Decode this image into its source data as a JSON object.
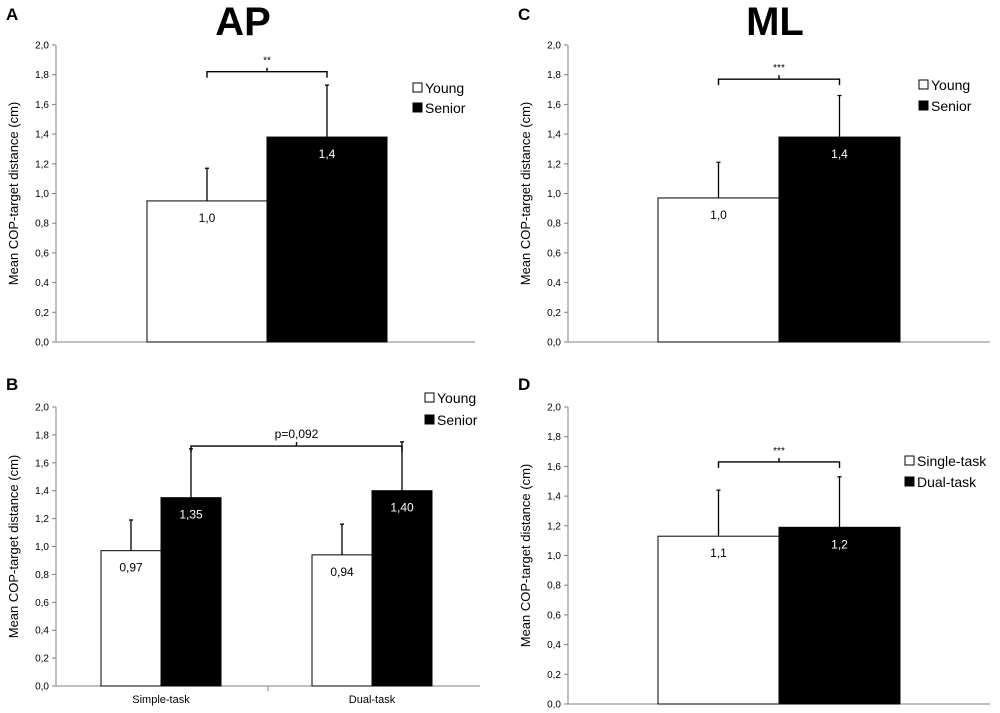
{
  "titles": {
    "ap": "AP",
    "ml": "ML"
  },
  "colors": {
    "young": "#ffffff",
    "senior": "#000000",
    "axis": "#808080",
    "text": "#000000"
  },
  "chart_data": [
    {
      "panel": "A",
      "type": "bar",
      "ylabel": "Mean COP-target distance (cm)",
      "ylim": [
        0,
        2.0
      ],
      "yticks": [
        "0,0",
        "0,2",
        "0,4",
        "0,6",
        "0,8",
        "1,0",
        "1,2",
        "1,4",
        "1,6",
        "1,8",
        "2,0"
      ],
      "categories": [
        ""
      ],
      "series": [
        {
          "name": "Young",
          "color": "#ffffff",
          "values": [
            0.95
          ],
          "errors": [
            0.22
          ],
          "labels": [
            "1,0"
          ]
        },
        {
          "name": "Senior",
          "color": "#000000",
          "values": [
            1.38
          ],
          "errors": [
            0.35
          ],
          "labels": [
            "1,4"
          ]
        }
      ],
      "significance": {
        "text": "**",
        "from": [
          0,
          0
        ],
        "to": [
          0,
          1
        ],
        "level": 1.82
      },
      "legend_position": "top-right"
    },
    {
      "panel": "B",
      "type": "bar",
      "ylabel": "Mean COP-target distance (cm)",
      "ylim": [
        0,
        2.0
      ],
      "yticks": [
        "0,0",
        "0,2",
        "0,4",
        "0,6",
        "0,8",
        "1,0",
        "1,2",
        "1,4",
        "1,6",
        "1,8",
        "2,0"
      ],
      "categories": [
        "Simple-task",
        "Dual-task"
      ],
      "series": [
        {
          "name": "Young",
          "color": "#ffffff",
          "values": [
            0.97,
            0.94
          ],
          "errors": [
            0.22,
            0.22
          ],
          "labels": [
            "0,97",
            "0,94"
          ]
        },
        {
          "name": "Senior",
          "color": "#000000",
          "values": [
            1.35,
            1.4
          ],
          "errors": [
            0.35,
            0.35
          ],
          "labels": [
            "1,35",
            "1,40"
          ]
        }
      ],
      "significance": {
        "text": "p=0,092",
        "from": [
          0,
          1
        ],
        "to": [
          1,
          1
        ],
        "level": 1.72
      },
      "legend_position": "top-right"
    },
    {
      "panel": "C",
      "type": "bar",
      "ylabel": "Mean COP-target distance (cm)",
      "ylim": [
        0,
        2.0
      ],
      "yticks": [
        "0,0",
        "0,2",
        "0,4",
        "0,6",
        "0,8",
        "1,0",
        "1,2",
        "1,4",
        "1,6",
        "1,8",
        "2,0"
      ],
      "categories": [
        ""
      ],
      "series": [
        {
          "name": "Young",
          "color": "#ffffff",
          "values": [
            0.97
          ],
          "errors": [
            0.24
          ],
          "labels": [
            "1,0"
          ]
        },
        {
          "name": "Senior",
          "color": "#000000",
          "values": [
            1.38
          ],
          "errors": [
            0.28
          ],
          "labels": [
            "1,4"
          ]
        }
      ],
      "significance": {
        "text": "***",
        "from": [
          0,
          0
        ],
        "to": [
          0,
          1
        ],
        "level": 1.77
      },
      "legend_position": "top-right"
    },
    {
      "panel": "D",
      "type": "bar",
      "ylabel": "Mean COP-target distance (cm)",
      "ylim": [
        0,
        2.0
      ],
      "yticks": [
        "0,0",
        "0,2",
        "0,4",
        "0,6",
        "0,8",
        "1,0",
        "1,2",
        "1,4",
        "1,6",
        "1,8",
        "2,0"
      ],
      "categories": [
        ""
      ],
      "series": [
        {
          "name": "Single-task",
          "color": "#ffffff",
          "values": [
            1.13
          ],
          "errors": [
            0.31
          ],
          "labels": [
            "1,1"
          ]
        },
        {
          "name": "Dual-task",
          "color": "#000000",
          "values": [
            1.19
          ],
          "errors": [
            0.34
          ],
          "labels": [
            "1,2"
          ]
        }
      ],
      "significance": {
        "text": "***",
        "from": [
          0,
          0
        ],
        "to": [
          0,
          1
        ],
        "level": 1.63
      },
      "legend_position": "right"
    }
  ]
}
